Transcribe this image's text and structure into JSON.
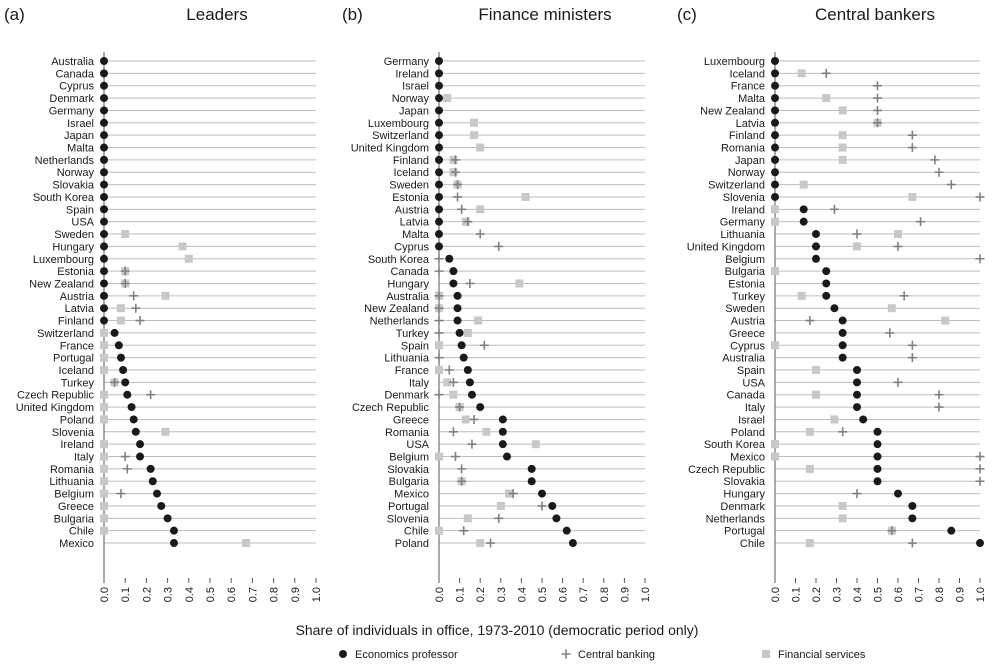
{
  "figure": {
    "xlabel": "Share of individuals in office, 1973-2010 (democratic period only)"
  },
  "legend": {
    "items": [
      {
        "marker": "dot",
        "label": "Economics professor"
      },
      {
        "marker": "plus",
        "label": "Central banking"
      },
      {
        "marker": "square",
        "label": "Financial services"
      }
    ]
  },
  "colors": {
    "econ": "#1a1a1a",
    "cb": "#808080",
    "fin": "#c8c8c8",
    "grid": "#bdbdbd",
    "axis": "#555555"
  },
  "chart_data": [
    {
      "type": "scatter",
      "panel_label": "(a)",
      "title": "Leaders",
      "xlim": [
        0,
        1
      ],
      "xticks": [
        "0.0",
        "0.1",
        "0.2",
        "0.3",
        "0.4",
        "0.5",
        "0.6",
        "0.7",
        "0.8",
        "0.9",
        "1.0"
      ],
      "categories": [
        "Australia",
        "Canada",
        "Cyprus",
        "Denmark",
        "Germany",
        "Israel",
        "Japan",
        "Malta",
        "Netherlands",
        "Norway",
        "Slovakia",
        "South Korea",
        "Spain",
        "USA",
        "Sweden",
        "Hungary",
        "Luxembourg",
        "Estonia",
        "New Zealand",
        "Austria",
        "Latvia",
        "Finland",
        "Switzerland",
        "France",
        "Portugal",
        "Iceland",
        "Turkey",
        "Czech Republic",
        "United Kingdom",
        "Poland",
        "Slovenia",
        "Ireland",
        "Italy",
        "Romania",
        "Lithuania",
        "Belgium",
        "Greece",
        "Bulgaria",
        "Chile",
        "Mexico"
      ],
      "series": [
        {
          "name": "Economics professor",
          "values": [
            0,
            0,
            0,
            0,
            0,
            0,
            0,
            0,
            0,
            0,
            0,
            0,
            0,
            0,
            0,
            0,
            0,
            0,
            0,
            0,
            0,
            0,
            0.05,
            0.07,
            0.08,
            0.09,
            0.1,
            0.11,
            0.13,
            0.14,
            0.15,
            0.17,
            0.17,
            0.22,
            0.23,
            0.25,
            0.27,
            0.3,
            0.33,
            0.33
          ]
        },
        {
          "name": "Central banking",
          "values": [
            null,
            null,
            null,
            null,
            null,
            null,
            null,
            null,
            null,
            null,
            null,
            null,
            null,
            null,
            null,
            null,
            null,
            0.1,
            0.1,
            0.14,
            0.15,
            0.17,
            null,
            null,
            null,
            null,
            0.05,
            0.22,
            null,
            null,
            null,
            null,
            0.1,
            0.11,
            null,
            0.08,
            null,
            null,
            null,
            null
          ]
        },
        {
          "name": "Financial services",
          "values": [
            null,
            null,
            null,
            null,
            null,
            null,
            null,
            null,
            null,
            null,
            null,
            null,
            null,
            null,
            0.1,
            0.37,
            0.4,
            0.1,
            0.1,
            0.29,
            0.08,
            0.08,
            0,
            0,
            0,
            0,
            0.05,
            0,
            0,
            0,
            0.29,
            0,
            0,
            0,
            0,
            0,
            0,
            0,
            0,
            0.67
          ]
        }
      ]
    },
    {
      "type": "scatter",
      "panel_label": "(b)",
      "title": "Finance ministers",
      "xlim": [
        0,
        1
      ],
      "xticks": [
        "0.0",
        "0.1",
        "0.2",
        "0.3",
        "0.4",
        "0.5",
        "0.6",
        "0.7",
        "0.8",
        "0.9",
        "1.0"
      ],
      "categories": [
        "Germany",
        "Ireland",
        "Israel",
        "Norway",
        "Japan",
        "Luxembourg",
        "Switzerland",
        "United Kingdom",
        "Finland",
        "Iceland",
        "Sweden",
        "Estonia",
        "Austria",
        "Latvia",
        "Malta",
        "Cyprus",
        "South Korea",
        "Canada",
        "Hungary",
        "Australia",
        "New Zealand",
        "Netherlands",
        "Turkey",
        "Spain",
        "Lithuania",
        "France",
        "Italy",
        "Denmark",
        "Czech Republic",
        "Greece",
        "Romania",
        "USA",
        "Belgium",
        "Slovakia",
        "Bulgaria",
        "Mexico",
        "Portugal",
        "Slovenia",
        "Chile",
        "Poland"
      ],
      "series": [
        {
          "name": "Economics professor",
          "values": [
            0,
            0,
            0,
            0,
            0,
            0,
            0,
            0,
            0,
            0,
            0,
            0,
            0,
            0,
            0,
            0,
            0.05,
            0.07,
            0.07,
            0.09,
            0.09,
            0.09,
            0.1,
            0.11,
            0.12,
            0.14,
            0.15,
            0.16,
            0.2,
            0.31,
            0.31,
            0.31,
            0.33,
            0.45,
            0.45,
            0.5,
            0.55,
            0.57,
            0.62,
            0.65
          ]
        },
        {
          "name": "Central banking",
          "values": [
            null,
            null,
            null,
            null,
            null,
            null,
            null,
            null,
            0.08,
            0.08,
            0.09,
            0.09,
            0.11,
            0.14,
            0.2,
            0.29,
            0,
            0,
            0.15,
            0,
            0,
            0,
            0,
            0.22,
            0,
            0.05,
            0.07,
            0,
            0.1,
            0.17,
            0.07,
            0.16,
            0.08,
            0.11,
            0.11,
            0.36,
            0.5,
            0.29,
            0.12,
            0.25
          ]
        },
        {
          "name": "Financial services",
          "values": [
            null,
            null,
            null,
            0.04,
            null,
            0.17,
            0.17,
            0.2,
            0.07,
            0.07,
            0.09,
            0.42,
            0.2,
            0.13,
            null,
            null,
            null,
            null,
            0.39,
            0,
            0,
            0.19,
            0.14,
            0,
            null,
            0,
            0.04,
            0.07,
            0.1,
            0.13,
            0.23,
            0.47,
            0,
            null,
            0.11,
            0.34,
            0.3,
            0.14,
            0,
            0.2
          ]
        }
      ]
    },
    {
      "type": "scatter",
      "panel_label": "(c)",
      "title": "Central bankers",
      "xlim": [
        0,
        1
      ],
      "xticks": [
        "0.0",
        "0.1",
        "0.2",
        "0.3",
        "0.4",
        "0.5",
        "0.6",
        "0.7",
        "0.8",
        "0.9",
        "1.0"
      ],
      "categories": [
        "Luxembourg",
        "Iceland",
        "France",
        "Malta",
        "New Zealand",
        "Latvia",
        "Finland",
        "Romania",
        "Japan",
        "Norway",
        "Switzerland",
        "Slovenia",
        "Ireland",
        "Germany",
        "Lithuania",
        "United Kingdom",
        "Belgium",
        "Bulgaria",
        "Estonia",
        "Turkey",
        "Sweden",
        "Austria",
        "Greece",
        "Cyprus",
        "Australia",
        "Spain",
        "USA",
        "Canada",
        "Italy",
        "Israel",
        "Poland",
        "South Korea",
        "Mexico",
        "Czech Republic",
        "Slovakia",
        "Hungary",
        "Denmark",
        "Netherlands",
        "Portugal",
        "Chile"
      ],
      "series": [
        {
          "name": "Economics professor",
          "values": [
            0,
            0,
            0,
            0,
            0,
            0,
            0,
            0,
            0,
            0,
            0,
            0,
            0.14,
            0.14,
            0.2,
            0.2,
            0.2,
            0.25,
            0.25,
            0.25,
            0.29,
            0.33,
            0.33,
            0.33,
            0.33,
            0.4,
            0.4,
            0.4,
            0.4,
            0.43,
            0.5,
            0.5,
            0.5,
            0.5,
            0.5,
            0.6,
            0.67,
            0.67,
            0.86,
            1.0
          ]
        },
        {
          "name": "Central banking",
          "values": [
            null,
            0.25,
            0.5,
            0.5,
            0.5,
            0.5,
            0.67,
            0.67,
            0.78,
            0.8,
            0.86,
            1.0,
            0.29,
            0.71,
            0.4,
            0.6,
            1.0,
            null,
            null,
            0.63,
            null,
            0.17,
            0.56,
            0.67,
            0.67,
            null,
            0.6,
            0.8,
            0.8,
            null,
            0.33,
            null,
            1.0,
            1.0,
            1.0,
            0.4,
            null,
            null,
            0.57,
            0.67
          ]
        },
        {
          "name": "Financial services",
          "values": [
            null,
            0.13,
            null,
            0.25,
            0.33,
            0.5,
            0.33,
            0.33,
            0.33,
            null,
            0.14,
            0.67,
            0,
            0,
            0.6,
            0.4,
            null,
            0,
            null,
            0.13,
            0.57,
            0.83,
            null,
            0,
            null,
            0.2,
            null,
            0.2,
            null,
            0.29,
            0.17,
            0,
            0,
            0.17,
            null,
            null,
            0.33,
            0.33,
            0.57,
            0.17
          ]
        }
      ]
    }
  ]
}
